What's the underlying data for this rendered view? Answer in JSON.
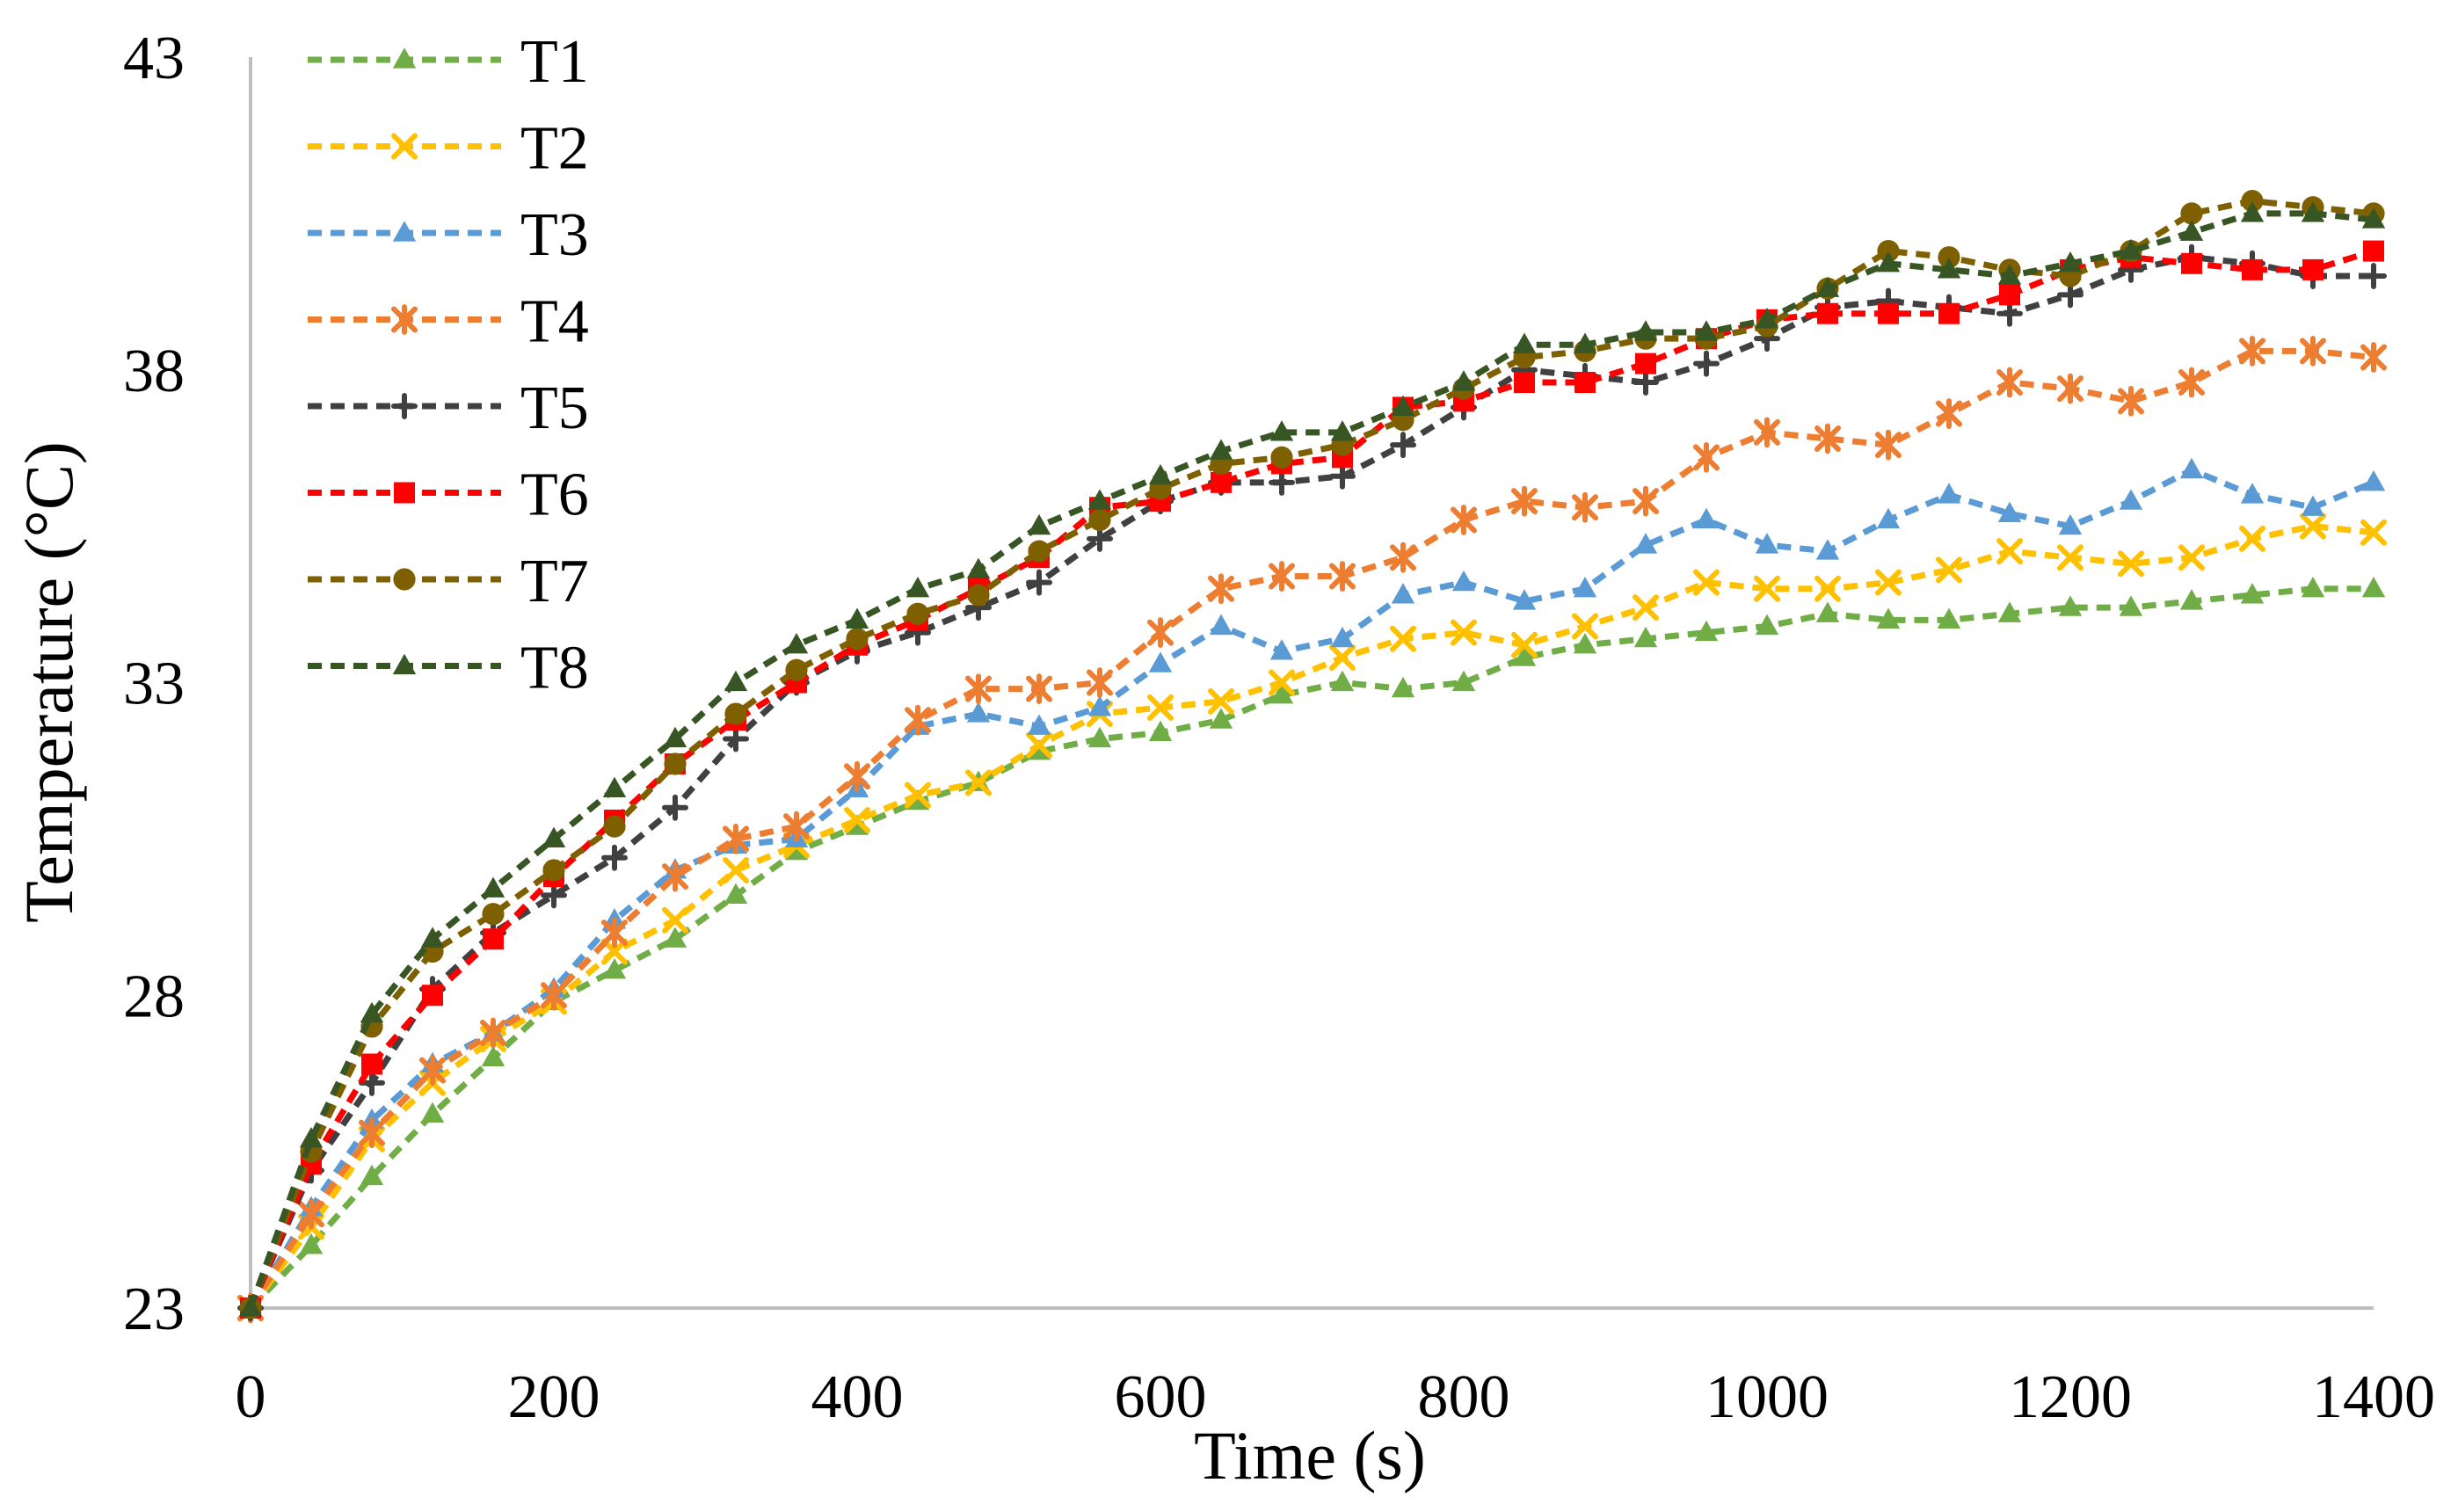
{
  "chart_data": {
    "type": "line",
    "xlabel": "Time (s)",
    "ylabel": "Temperature (°C)",
    "xlim": [
      0,
      1400
    ],
    "ylim": [
      23,
      43
    ],
    "x_ticks": [
      "0",
      "200",
      "400",
      "600",
      "800",
      "1000",
      "1200",
      "1400"
    ],
    "y_ticks": [
      "23",
      "28",
      "33",
      "38",
      "43"
    ],
    "grid": false,
    "legend_position": "top-left",
    "x": [
      0,
      40,
      80,
      120,
      160,
      200,
      240,
      280,
      320,
      360,
      400,
      440,
      480,
      520,
      560,
      600,
      640,
      680,
      720,
      760,
      800,
      840,
      880,
      920,
      960,
      1000,
      1040,
      1080,
      1120,
      1160,
      1200,
      1240,
      1280,
      1320,
      1360,
      1400
    ],
    "series": [
      {
        "name": "T1",
        "color": "#70ad47",
        "marker": "triangle",
        "values": [
          23.0,
          24.0,
          25.1,
          26.1,
          27.0,
          27.9,
          28.4,
          28.9,
          29.6,
          30.3,
          30.7,
          31.1,
          31.4,
          31.9,
          32.1,
          32.2,
          32.4,
          32.8,
          33.0,
          32.9,
          33.0,
          33.4,
          33.6,
          33.7,
          33.8,
          33.9,
          34.1,
          34.0,
          34.0,
          34.1,
          34.2,
          34.2,
          34.3,
          34.4,
          34.5,
          34.5
        ]
      },
      {
        "name": "T2",
        "color": "#ffc000",
        "marker": "x",
        "values": [
          23.0,
          24.3,
          25.7,
          26.6,
          27.3,
          27.9,
          28.7,
          29.2,
          30.0,
          30.4,
          30.8,
          31.2,
          31.4,
          32.0,
          32.5,
          32.6,
          32.7,
          33.0,
          33.4,
          33.7,
          33.8,
          33.6,
          33.9,
          34.2,
          34.6,
          34.5,
          34.5,
          34.6,
          34.8,
          35.1,
          35.0,
          34.9,
          35.0,
          35.3,
          35.5,
          35.4
        ]
      },
      {
        "name": "T3",
        "color": "#5b9bd5",
        "marker": "triangle",
        "values": [
          23.0,
          24.6,
          26.0,
          26.9,
          27.4,
          28.1,
          29.2,
          30.0,
          30.4,
          30.5,
          31.3,
          32.3,
          32.5,
          32.3,
          32.6,
          33.3,
          33.9,
          33.5,
          33.7,
          34.4,
          34.6,
          34.3,
          34.5,
          35.2,
          35.6,
          35.2,
          35.1,
          35.6,
          36.0,
          35.7,
          35.5,
          35.9,
          36.4,
          36.0,
          35.8,
          36.2
        ]
      },
      {
        "name": "T4",
        "color": "#ed7d31",
        "marker": "star",
        "values": [
          23.0,
          24.5,
          25.8,
          26.8,
          27.4,
          28.0,
          29.0,
          29.9,
          30.5,
          30.7,
          31.5,
          32.4,
          32.9,
          32.9,
          33.0,
          33.8,
          34.5,
          34.7,
          34.7,
          35.0,
          35.6,
          35.9,
          35.8,
          35.9,
          36.6,
          37.0,
          36.9,
          36.8,
          37.3,
          37.8,
          37.7,
          37.5,
          37.8,
          38.3,
          38.3,
          38.2
        ]
      },
      {
        "name": "T5",
        "color": "#404040",
        "marker": "plus",
        "values": [
          23.0,
          25.2,
          26.6,
          28.1,
          29.0,
          29.6,
          30.2,
          31.0,
          32.1,
          33.0,
          33.5,
          33.8,
          34.2,
          34.6,
          35.3,
          35.9,
          36.2,
          36.2,
          36.3,
          36.8,
          37.4,
          38.0,
          37.9,
          37.8,
          38.1,
          38.5,
          39.0,
          39.1,
          39.0,
          38.9,
          39.2,
          39.6,
          39.8,
          39.7,
          39.5,
          39.5
        ]
      },
      {
        "name": "T6",
        "color": "#ff0000",
        "marker": "square",
        "values": [
          23.0,
          25.3,
          26.9,
          28.0,
          28.9,
          29.9,
          30.8,
          31.7,
          32.4,
          33.0,
          33.6,
          34.0,
          34.5,
          35.0,
          35.8,
          35.9,
          36.2,
          36.5,
          36.6,
          37.4,
          37.5,
          37.8,
          37.8,
          38.1,
          38.5,
          38.8,
          38.9,
          38.9,
          38.9,
          39.2,
          39.6,
          39.8,
          39.7,
          39.6,
          39.6,
          39.9
        ]
      },
      {
        "name": "T7",
        "color": "#7f6000",
        "marker": "circle",
        "values": [
          23.0,
          25.5,
          27.5,
          28.7,
          29.3,
          30.0,
          30.7,
          31.7,
          32.5,
          33.2,
          33.7,
          34.1,
          34.4,
          35.1,
          35.6,
          36.1,
          36.5,
          36.6,
          36.8,
          37.2,
          37.7,
          38.2,
          38.3,
          38.5,
          38.5,
          38.7,
          39.3,
          39.9,
          39.8,
          39.6,
          39.5,
          39.9,
          40.5,
          40.7,
          40.6,
          40.5
        ]
      },
      {
        "name": "T8",
        "color": "#375623",
        "marker": "triangle",
        "values": [
          23.0,
          25.7,
          27.7,
          28.9,
          29.7,
          30.5,
          31.3,
          32.1,
          33.0,
          33.6,
          34.0,
          34.5,
          34.8,
          35.5,
          35.9,
          36.3,
          36.7,
          37.0,
          37.0,
          37.4,
          37.8,
          38.4,
          38.4,
          38.6,
          38.6,
          38.8,
          39.3,
          39.7,
          39.6,
          39.5,
          39.7,
          39.9,
          40.2,
          40.5,
          40.5,
          40.4
        ]
      }
    ]
  }
}
